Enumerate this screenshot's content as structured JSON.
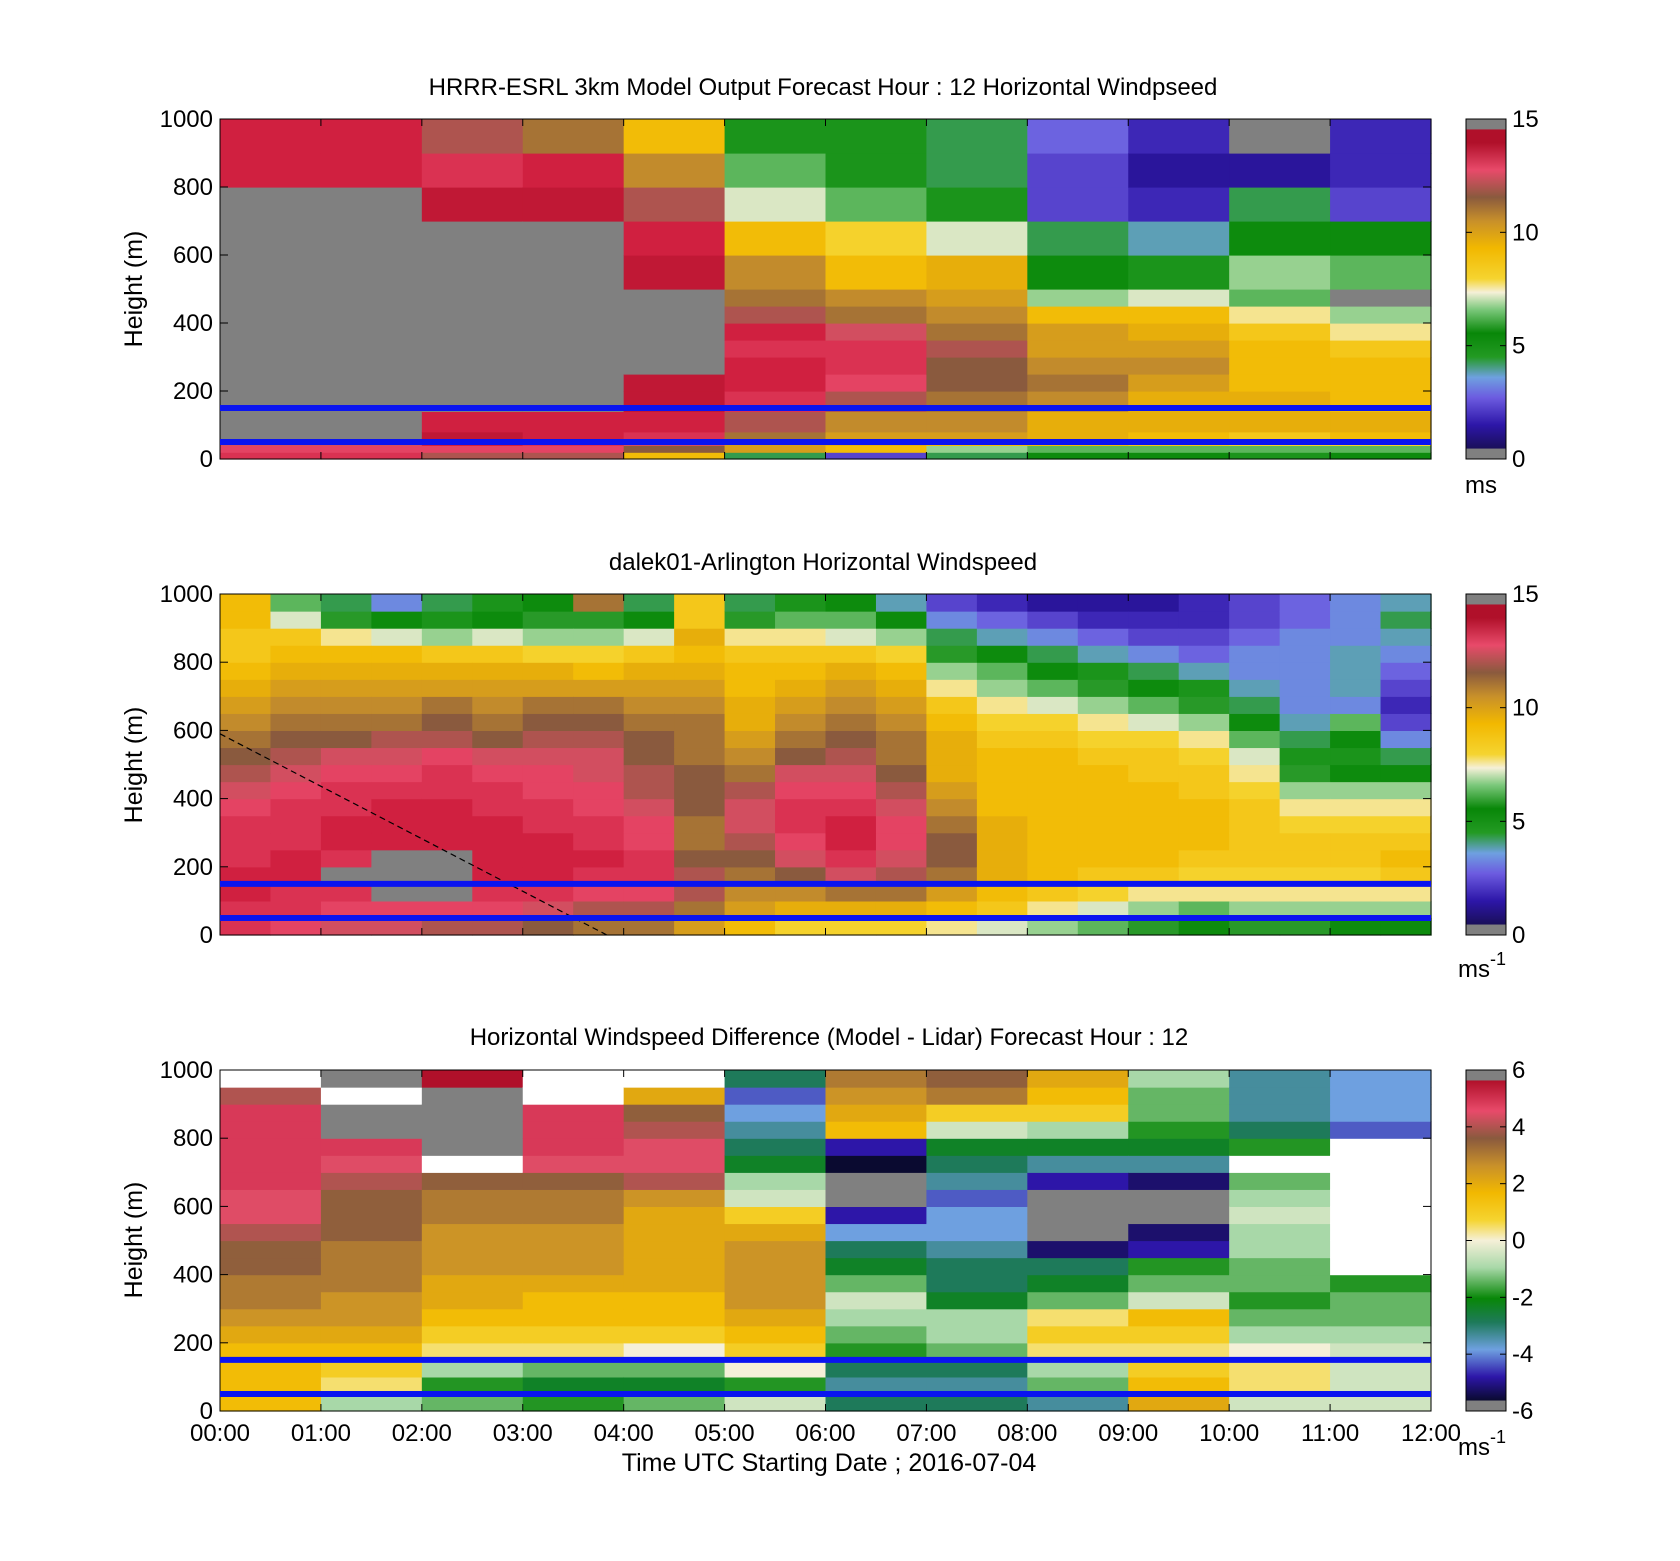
{
  "x_ticks": [
    "00:00",
    "01:00",
    "02:00",
    "03:00",
    "04:00",
    "05:00",
    "06:00",
    "07:00",
    "08:00",
    "09:00",
    "10:00",
    "11:00",
    "12:00"
  ],
  "x_label": "Time UTC  Starting Date ; 2016-07-04",
  "marker_lines_color": "#0a14f0",
  "chart_data": [
    {
      "type": "heatmap",
      "title": "HRRR-ESRL 3km Model Output   Forecast Hour : 12 Horizontal Windpseed",
      "ylabel": "Height (m)",
      "ylim": [
        0,
        1000
      ],
      "y_ticks": [
        "0",
        "200",
        "400",
        "600",
        "800",
        "1000"
      ],
      "colorbar": {
        "ticks": [
          "0",
          "5",
          "10",
          "15"
        ],
        "range": [
          0,
          15
        ],
        "unit": "ms",
        "unit_sup": ""
      },
      "marker_heights_m": [
        50,
        150
      ],
      "x_columns": [
        "00:00",
        "01:00",
        "02:00",
        "03:00",
        "04:00",
        "05:00",
        "06:00",
        "07:00",
        "08:00",
        "09:00",
        "10:00",
        "11:00"
      ],
      "heights_m": [
        0,
        20,
        40,
        60,
        80,
        140,
        200,
        250,
        300,
        350,
        400,
        450,
        500,
        600,
        700,
        800,
        900,
        1000
      ],
      "values_ms": [
        [
          13.5,
          13.0,
          12.5,
          0.0,
          0.0,
          0.0,
          0.0,
          0.0,
          0.0,
          0.0,
          0.0,
          0.0,
          0.0,
          0.0,
          0.0,
          14.0,
          14.0
        ],
        [
          13.5,
          13.0,
          12.5,
          0.0,
          0.0,
          0.0,
          0.0,
          0.0,
          0.0,
          0.0,
          0.0,
          0.0,
          0.0,
          0.0,
          0.0,
          14.0,
          14.0
        ],
        [
          12.0,
          13.0,
          14.0,
          14.5,
          14.0,
          0.0,
          0.0,
          0.0,
          0.0,
          0.0,
          0.0,
          0.0,
          0.0,
          0.0,
          14.5,
          13.5,
          12.0
        ],
        [
          12.0,
          13.0,
          13.5,
          14.0,
          14.0,
          0.0,
          0.0,
          0.0,
          0.0,
          0.0,
          0.0,
          0.0,
          0.0,
          0.0,
          14.5,
          14.0,
          11.0
        ],
        [
          9.0,
          11.5,
          12.5,
          13.5,
          14.0,
          14.5,
          14.5,
          0.0,
          0.0,
          0.0,
          0.0,
          0.0,
          14.5,
          14.0,
          12.0,
          10.5,
          9.0
        ],
        [
          4.0,
          10.0,
          10.0,
          11.0,
          12.0,
          13.5,
          14.0,
          14.0,
          13.5,
          14.0,
          12.0,
          11.0,
          10.5,
          9.0,
          7.0,
          6.0,
          4.5
        ],
        [
          2.0,
          9.0,
          9.5,
          10.0,
          10.5,
          12.0,
          13.0,
          13.5,
          13.5,
          12.5,
          11.0,
          10.5,
          9.0,
          8.0,
          6.0,
          4.5,
          4.5
        ],
        [
          4.0,
          6.5,
          9.0,
          10.0,
          10.5,
          11.0,
          11.5,
          11.5,
          12.0,
          11.0,
          10.5,
          10.0,
          9.5,
          7.0,
          4.5,
          4.0,
          4.0
        ],
        [
          5.0,
          6.0,
          9.0,
          9.5,
          9.5,
          10.5,
          11.0,
          10.5,
          10.0,
          10.0,
          9.0,
          6.5,
          5.0,
          4.0,
          2.0,
          2.0,
          2.5
        ],
        [
          5.0,
          6.0,
          8.5,
          9.0,
          9.5,
          9.5,
          10.0,
          10.5,
          10.0,
          9.5,
          9.0,
          7.0,
          4.5,
          3.5,
          1.5,
          1.0,
          1.5
        ],
        [
          4.5,
          6.0,
          8.0,
          8.5,
          9.5,
          9.5,
          9.0,
          9.0,
          9.0,
          8.5,
          7.5,
          6.0,
          6.5,
          5.0,
          4.0,
          1.0,
          0.0
        ],
        [
          5.0,
          6.0,
          8.0,
          9.0,
          9.5,
          9.0,
          9.0,
          9.0,
          8.5,
          7.5,
          6.5,
          0.0,
          6.0,
          5.0,
          2.0,
          1.5,
          1.5
        ]
      ]
    },
    {
      "type": "heatmap",
      "title": "dalek01-Arlington  Horizontal Windspeed",
      "ylabel": "Height (m)",
      "ylim": [
        0,
        1000
      ],
      "y_ticks": [
        "0",
        "200",
        "400",
        "600",
        "800",
        "1000"
      ],
      "colorbar": {
        "ticks": [
          "0",
          "5",
          "10",
          "15"
        ],
        "range": [
          0,
          15
        ],
        "unit": "ms",
        "unit_sup": "-1"
      },
      "marker_heights_m": [
        50,
        150
      ],
      "dashed_line": {
        "from": [
          "00:00",
          590
        ],
        "to": [
          "03:50",
          0
        ]
      },
      "x_range": [
        "00:00",
        "12:00"
      ],
      "heights_m": [
        0,
        50,
        100,
        150,
        200,
        250,
        300,
        350,
        400,
        450,
        500,
        550,
        600,
        650,
        700,
        750,
        800,
        850,
        900,
        950,
        1000
      ],
      "profile_times": [
        "00:00",
        "00:30",
        "01:00",
        "01:30",
        "02:00",
        "02:30",
        "03:00",
        "03:30",
        "04:00",
        "04:30",
        "05:00",
        "05:30",
        "06:00",
        "06:30",
        "07:00",
        "07:30",
        "08:00",
        "08:30",
        "09:00",
        "09:30",
        "10:00",
        "10:30",
        "11:00",
        "11:30",
        "12:00"
      ],
      "values_ms": [
        [
          13.5,
          13.5,
          14.0,
          14.0,
          13.5,
          13.5,
          13.5,
          13.0,
          12.5,
          12.0,
          11.5,
          11.0,
          10.5,
          10.0,
          9.5,
          9.0,
          8.5,
          8.5,
          9.0,
          9.0
        ],
        [
          13.0,
          13.5,
          13.5,
          14.0,
          14.0,
          13.5,
          13.5,
          13.5,
          13.0,
          12.5,
          12.0,
          11.5,
          11.0,
          10.5,
          10.0,
          9.5,
          9.0,
          8.5,
          7.0,
          6.0
        ],
        [
          12.5,
          13.0,
          13.5,
          0.0,
          13.5,
          14.0,
          14.0,
          13.5,
          13.5,
          13.0,
          12.5,
          11.5,
          11.0,
          10.5,
          10.0,
          9.5,
          9.0,
          7.5,
          5.5,
          4.0
        ],
        [
          12.5,
          13.0,
          0.0,
          0.0,
          0.0,
          14.0,
          14.0,
          14.0,
          13.5,
          13.0,
          12.5,
          12.0,
          11.0,
          10.5,
          10.0,
          9.5,
          9.0,
          7.0,
          5.0,
          3.0
        ],
        [
          12.0,
          13.0,
          0.0,
          0.0,
          0.0,
          14.0,
          14.0,
          14.0,
          13.5,
          13.5,
          13.0,
          12.0,
          11.5,
          11.0,
          10.0,
          9.5,
          8.5,
          6.5,
          4.5,
          4.0
        ],
        [
          12.0,
          13.0,
          13.5,
          14.0,
          14.0,
          14.0,
          14.0,
          13.5,
          13.5,
          13.0,
          12.5,
          11.5,
          11.0,
          10.5,
          10.0,
          9.5,
          8.5,
          7.0,
          5.0,
          4.5
        ],
        [
          11.5,
          12.5,
          13.5,
          14.0,
          14.0,
          14.0,
          13.5,
          13.5,
          13.0,
          13.0,
          12.5,
          12.0,
          11.5,
          11.0,
          10.0,
          9.5,
          8.0,
          6.5,
          5.5,
          5.0
        ],
        [
          11.0,
          12.0,
          13.0,
          13.5,
          14.0,
          13.5,
          13.5,
          13.0,
          13.0,
          12.5,
          12.5,
          12.0,
          11.5,
          11.0,
          10.0,
          9.0,
          8.0,
          6.5,
          5.5,
          11.0
        ],
        [
          11.0,
          12.0,
          13.0,
          13.5,
          13.5,
          13.0,
          13.0,
          12.5,
          12.0,
          12.0,
          11.5,
          11.5,
          11.0,
          10.5,
          10.0,
          9.5,
          8.5,
          7.0,
          5.0,
          4.0
        ],
        [
          10.0,
          11.0,
          12.0,
          12.0,
          11.5,
          11.0,
          11.0,
          11.5,
          11.5,
          11.5,
          11.0,
          11.0,
          11.0,
          10.5,
          10.0,
          9.5,
          9.0,
          9.5,
          8.5,
          8.5
        ],
        [
          9.0,
          10.0,
          10.5,
          11.0,
          11.5,
          12.0,
          12.5,
          12.5,
          12.0,
          11.0,
          10.5,
          10.0,
          9.5,
          9.5,
          9.0,
          9.0,
          8.5,
          7.5,
          5.5,
          4.0
        ],
        [
          8.0,
          9.5,
          10.5,
          11.5,
          12.5,
          13.0,
          13.5,
          13.5,
          13.0,
          12.5,
          11.5,
          11.0,
          10.5,
          10.0,
          9.5,
          9.0,
          8.5,
          7.5,
          6.0,
          4.5
        ],
        [
          8.0,
          9.5,
          11.0,
          12.5,
          13.5,
          14.0,
          14.0,
          13.5,
          13.0,
          12.5,
          12.0,
          11.5,
          11.0,
          10.5,
          10.0,
          9.5,
          8.5,
          7.0,
          6.0,
          5.0
        ],
        [
          8.0,
          9.5,
          11.0,
          12.0,
          12.5,
          13.0,
          13.0,
          12.5,
          12.0,
          11.5,
          11.0,
          11.0,
          10.5,
          10.0,
          9.5,
          9.0,
          8.0,
          6.5,
          5.0,
          3.5
        ],
        [
          7.5,
          9.0,
          10.0,
          11.0,
          11.5,
          11.5,
          11.0,
          10.5,
          10.0,
          9.5,
          9.5,
          9.5,
          9.0,
          8.5,
          7.5,
          6.5,
          5.5,
          4.0,
          3.0,
          2.0
        ],
        [
          7.0,
          8.5,
          9.0,
          9.5,
          9.5,
          9.5,
          9.5,
          9.0,
          9.0,
          9.0,
          9.0,
          8.5,
          8.0,
          7.5,
          6.5,
          6.0,
          5.0,
          3.5,
          2.5,
          1.5
        ],
        [
          6.5,
          7.5,
          8.5,
          9.0,
          9.0,
          9.0,
          9.0,
          9.0,
          9.0,
          9.0,
          9.0,
          8.5,
          8.0,
          7.0,
          6.0,
          5.0,
          4.0,
          3.0,
          2.0,
          1.0
        ],
        [
          6.0,
          7.0,
          8.0,
          8.5,
          9.0,
          9.0,
          9.0,
          9.0,
          9.0,
          9.0,
          8.5,
          8.0,
          7.5,
          6.5,
          5.5,
          4.5,
          3.5,
          2.5,
          1.5,
          1.0
        ],
        [
          5.5,
          6.5,
          7.5,
          8.5,
          9.0,
          9.0,
          9.0,
          9.0,
          9.0,
          8.5,
          8.5,
          8.0,
          7.0,
          6.0,
          5.0,
          4.0,
          3.0,
          2.0,
          1.5,
          1.0
        ],
        [
          5.0,
          6.0,
          7.5,
          8.0,
          8.5,
          9.0,
          9.0,
          9.0,
          8.5,
          8.5,
          8.0,
          7.5,
          6.5,
          5.5,
          4.5,
          3.5,
          2.5,
          2.0,
          1.5,
          1.5
        ],
        [
          5.5,
          6.5,
          7.5,
          8.0,
          8.5,
          8.5,
          8.5,
          8.5,
          8.0,
          7.5,
          7.0,
          6.0,
          5.0,
          4.0,
          3.5,
          3.0,
          3.0,
          2.5,
          2.0,
          2.0
        ],
        [
          5.5,
          6.5,
          7.5,
          8.0,
          8.5,
          8.5,
          8.0,
          7.5,
          6.5,
          5.5,
          4.5,
          4.0,
          3.5,
          3.0,
          3.0,
          3.0,
          3.0,
          3.0,
          2.5,
          2.5
        ],
        [
          5.0,
          6.5,
          7.5,
          8.0,
          8.5,
          8.5,
          8.0,
          7.5,
          6.5,
          5.0,
          4.5,
          5.0,
          6.0,
          3.0,
          3.5,
          3.5,
          3.5,
          3.0,
          3.0,
          3.0
        ],
        [
          5.0,
          6.5,
          7.5,
          8.5,
          9.0,
          8.5,
          8.0,
          7.5,
          6.5,
          5.0,
          4.0,
          3.0,
          2.0,
          1.5,
          2.0,
          2.5,
          3.0,
          3.5,
          4.0,
          3.5
        ],
        [
          5.0,
          6.0,
          7.5,
          8.0,
          8.5,
          8.5,
          8.5,
          8.0,
          7.0,
          5.5,
          4.5,
          3.5,
          3.0,
          3.0,
          3.0,
          3.5,
          3.5,
          4.0,
          4.0,
          4.0
        ]
      ]
    },
    {
      "type": "heatmap",
      "title": "Horizontal Windspeed Difference (Model - Lidar) Forecast Hour : 12",
      "ylabel": "Height (m)",
      "ylim": [
        0,
        1000
      ],
      "y_ticks": [
        "0",
        "200",
        "400",
        "600",
        "800",
        "1000"
      ],
      "colorbar": {
        "ticks": [
          "-6",
          "-4",
          "-2",
          "0",
          "2",
          "4",
          "6"
        ],
        "range": [
          -6,
          6
        ],
        "unit": "ms",
        "unit_sup": "-1"
      },
      "marker_heights_m": [
        50,
        150
      ],
      "x_columns": [
        "00:00",
        "01:00",
        "02:00",
        "03:00",
        "04:00",
        "05:00",
        "06:00",
        "07:00",
        "08:00",
        "09:00",
        "10:00",
        "11:00"
      ],
      "heights_m": [
        0,
        50,
        100,
        150,
        200,
        250,
        300,
        350,
        400,
        450,
        500,
        550,
        600,
        650,
        700,
        750,
        800,
        850,
        900,
        950,
        1000
      ],
      "values_ms": [
        [
          1.5,
          1.5,
          1.5,
          1.5,
          2.0,
          2.5,
          3.0,
          3.0,
          3.5,
          3.5,
          4.0,
          4.5,
          4.5,
          5.0,
          5.0,
          5.0,
          5.0,
          5.0,
          4.0,
          null
        ],
        [
          -1.0,
          0.5,
          1.0,
          1.5,
          2.0,
          2.5,
          2.5,
          3.0,
          3.0,
          3.0,
          3.5,
          3.5,
          3.5,
          4.0,
          4.5,
          5.0,
          -9.0,
          -9.0,
          null,
          -9.0
        ],
        [
          -1.5,
          -2.0,
          -1.0,
          0.5,
          1.0,
          1.5,
          2.0,
          2.0,
          2.5,
          2.5,
          2.5,
          3.0,
          3.0,
          3.5,
          null,
          -9.0,
          -9.0,
          -9.0,
          -9.0,
          6.0
        ],
        [
          -2.0,
          -2.5,
          -1.5,
          0.5,
          1.0,
          1.5,
          1.5,
          2.0,
          2.5,
          2.5,
          2.5,
          3.0,
          3.0,
          3.5,
          4.5,
          5.0,
          5.0,
          5.0,
          null,
          null
        ],
        [
          -1.5,
          -2.5,
          -1.5,
          0.0,
          1.0,
          1.5,
          1.5,
          2.0,
          2.0,
          2.0,
          2.0,
          2.0,
          2.5,
          4.0,
          4.5,
          4.5,
          4.0,
          3.5,
          2.0,
          null
        ],
        [
          -0.5,
          -2.0,
          0.0,
          1.0,
          1.5,
          2.0,
          2.5,
          2.5,
          2.5,
          2.5,
          2.0,
          1.0,
          -0.5,
          -1.0,
          -2.5,
          -3.0,
          -3.5,
          -4.0,
          -4.5,
          -3.0
        ],
        [
          -3.0,
          -3.5,
          -3.0,
          -2.0,
          -1.5,
          -1.0,
          -0.5,
          -1.5,
          -2.5,
          -3.0,
          -4.0,
          -5.0,
          -9.0,
          -9.0,
          -6.0,
          -5.0,
          1.5,
          2.0,
          2.5,
          3.0
        ],
        [
          -3.0,
          -3.5,
          -3.0,
          -1.5,
          -1.0,
          -1.0,
          -2.5,
          -3.0,
          -3.0,
          -3.5,
          -4.0,
          -4.0,
          -4.5,
          -3.5,
          -3.0,
          -2.5,
          -0.5,
          1.0,
          3.0,
          3.5
        ],
        [
          -3.5,
          -1.5,
          -1.0,
          0.5,
          1.0,
          0.5,
          -1.5,
          -2.5,
          -3.0,
          -5.5,
          -9.0,
          -9.0,
          -9.0,
          -5.0,
          -3.5,
          -2.5,
          -1.0,
          1.0,
          1.5,
          2.0
        ],
        [
          2.0,
          1.5,
          1.0,
          0.5,
          1.0,
          1.5,
          -0.5,
          -1.5,
          -2.0,
          -5.0,
          -5.5,
          -9.0,
          -9.0,
          -5.5,
          -3.5,
          -2.5,
          -2.0,
          -1.5,
          -1.5,
          -1.0
        ],
        [
          -0.5,
          0.5,
          0.5,
          0.0,
          -1.0,
          -1.5,
          -2.0,
          -1.5,
          -1.5,
          -1.0,
          -1.0,
          -0.5,
          -1.0,
          -1.5,
          null,
          -2.0,
          -3.0,
          -3.5,
          -3.5,
          -3.5
        ],
        [
          -0.5,
          -0.5,
          -0.5,
          -0.5,
          -1.0,
          -1.5,
          -1.5,
          -2.0,
          null,
          null,
          null,
          null,
          null,
          null,
          null,
          null,
          -4.5,
          -4.0,
          -4.0,
          -4.0
        ]
      ]
    }
  ]
}
